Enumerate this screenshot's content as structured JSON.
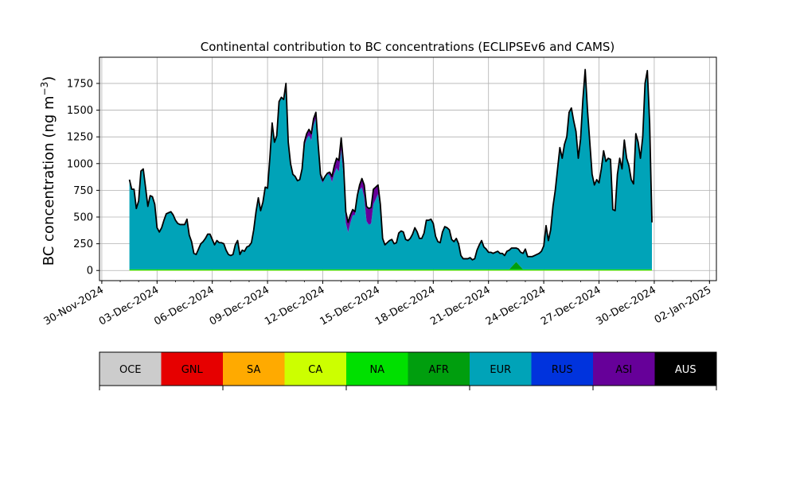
{
  "chart_data": {
    "type": "area",
    "title": "Continental contribution to BC concentrations (ECLIPSEv6 and CAMS)",
    "ylabel": "BC concentration (ng m",
    "ylabel_superscript": "−3",
    "ylabel_suffix": ")",
    "ylim": [
      -95,
      1995
    ],
    "yticks": [
      0,
      250,
      500,
      750,
      1000,
      1250,
      1500,
      1750
    ],
    "xlim": [
      "2024-11-29T21:00",
      "2025-01-02T09:00"
    ],
    "xtick_dates": [
      "2024-11-30",
      "2024-12-03",
      "2024-12-06",
      "2024-12-09",
      "2024-12-12",
      "2024-12-15",
      "2024-12-18",
      "2024-12-21",
      "2024-12-24",
      "2024-12-27",
      "2024-12-30",
      "2025-01-02"
    ],
    "xtick_labels": [
      "30-Nov-2024",
      "03-Dec-2024",
      "06-Dec-2024",
      "09-Dec-2024",
      "12-Dec-2024",
      "15-Dec-2024",
      "18-Dec-2024",
      "21-Dec-2024",
      "24-Dec-2024",
      "27-Dec-2024",
      "30-Dec-2024",
      "02-Jan-2025"
    ],
    "grid": true,
    "legend_position": "below chart",
    "legend": [
      {
        "name": "OCE",
        "color": "#cccccc"
      },
      {
        "name": "GNL",
        "color": "#e60000"
      },
      {
        "name": "SA",
        "color": "#ffaa00"
      },
      {
        "name": "CA",
        "color": "#ccff00"
      },
      {
        "name": "NA",
        "color": "#00e000"
      },
      {
        "name": "AFR",
        "color": "#009e0e"
      },
      {
        "name": "EUR",
        "color": "#00a3b8"
      },
      {
        "name": "RUS",
        "color": "#0033dd"
      },
      {
        "name": "ASI",
        "color": "#660099"
      },
      {
        "name": "AUS",
        "color": "#000000"
      }
    ],
    "timeseries": {
      "start": "2024-12-01T12:00",
      "step_hours": 3,
      "total": [
        850,
        760,
        760,
        580,
        650,
        930,
        950,
        780,
        600,
        700,
        690,
        620,
        400,
        360,
        400,
        470,
        530,
        540,
        550,
        520,
        470,
        440,
        430,
        430,
        430,
        480,
        330,
        270,
        160,
        150,
        200,
        250,
        270,
        300,
        340,
        340,
        290,
        240,
        280,
        260,
        260,
        250,
        190,
        150,
        140,
        150,
        240,
        280,
        150,
        190,
        180,
        220,
        230,
        260,
        380,
        550,
        680,
        560,
        640,
        780,
        770,
        1050,
        1380,
        1200,
        1260,
        1580,
        1620,
        1600,
        1750,
        1200,
        1000,
        900,
        880,
        840,
        850,
        950,
        1200,
        1280,
        1320,
        1280,
        1420,
        1480,
        1180,
        900,
        840,
        880,
        910,
        920,
        880,
        980,
        1050,
        1030,
        1240,
        1000,
        550,
        450,
        520,
        570,
        550,
        700,
        800,
        860,
        800,
        600,
        580,
        590,
        760,
        780,
        800,
        620,
        300,
        240,
        260,
        280,
        290,
        250,
        260,
        350,
        370,
        360,
        290,
        280,
        300,
        340,
        400,
        360,
        300,
        300,
        350,
        470,
        470,
        480,
        440,
        320,
        270,
        260,
        360,
        410,
        400,
        380,
        290,
        270,
        300,
        250,
        140,
        110,
        110,
        110,
        120,
        100,
        110,
        190,
        240,
        280,
        220,
        200,
        170,
        170,
        160,
        170,
        180,
        160,
        160,
        140,
        180,
        190,
        210,
        210,
        210,
        200,
        170,
        160,
        200,
        130,
        130,
        130,
        140,
        150,
        160,
        180,
        230,
        420,
        280,
        380,
        600,
        750,
        950,
        1150,
        1050,
        1180,
        1250,
        1480,
        1520,
        1400,
        1300,
        1050,
        1230,
        1600,
        1880,
        1500,
        1200,
        900,
        800,
        850,
        820,
        950,
        1120,
        1020,
        1050,
        1040,
        570,
        560,
        900,
        1050,
        950,
        1220,
        1050,
        980,
        850,
        810,
        1280,
        1200,
        1050,
        1250,
        1750,
        1870,
        1380,
        450
      ],
      "asi_spans": [
        {
          "from": "2024-12-10T18:00",
          "to": "2024-12-12T03:00",
          "peak": 60
        },
        {
          "from": "2024-12-12T06:00",
          "to": "2024-12-13T21:00",
          "peak": 110
        },
        {
          "from": "2024-12-13T21:00",
          "to": "2024-12-15T06:00",
          "peak": 150
        }
      ],
      "afr_spike": {
        "at": "2024-12-22T12:00",
        "peak": 70
      },
      "na_base": 10
    }
  }
}
